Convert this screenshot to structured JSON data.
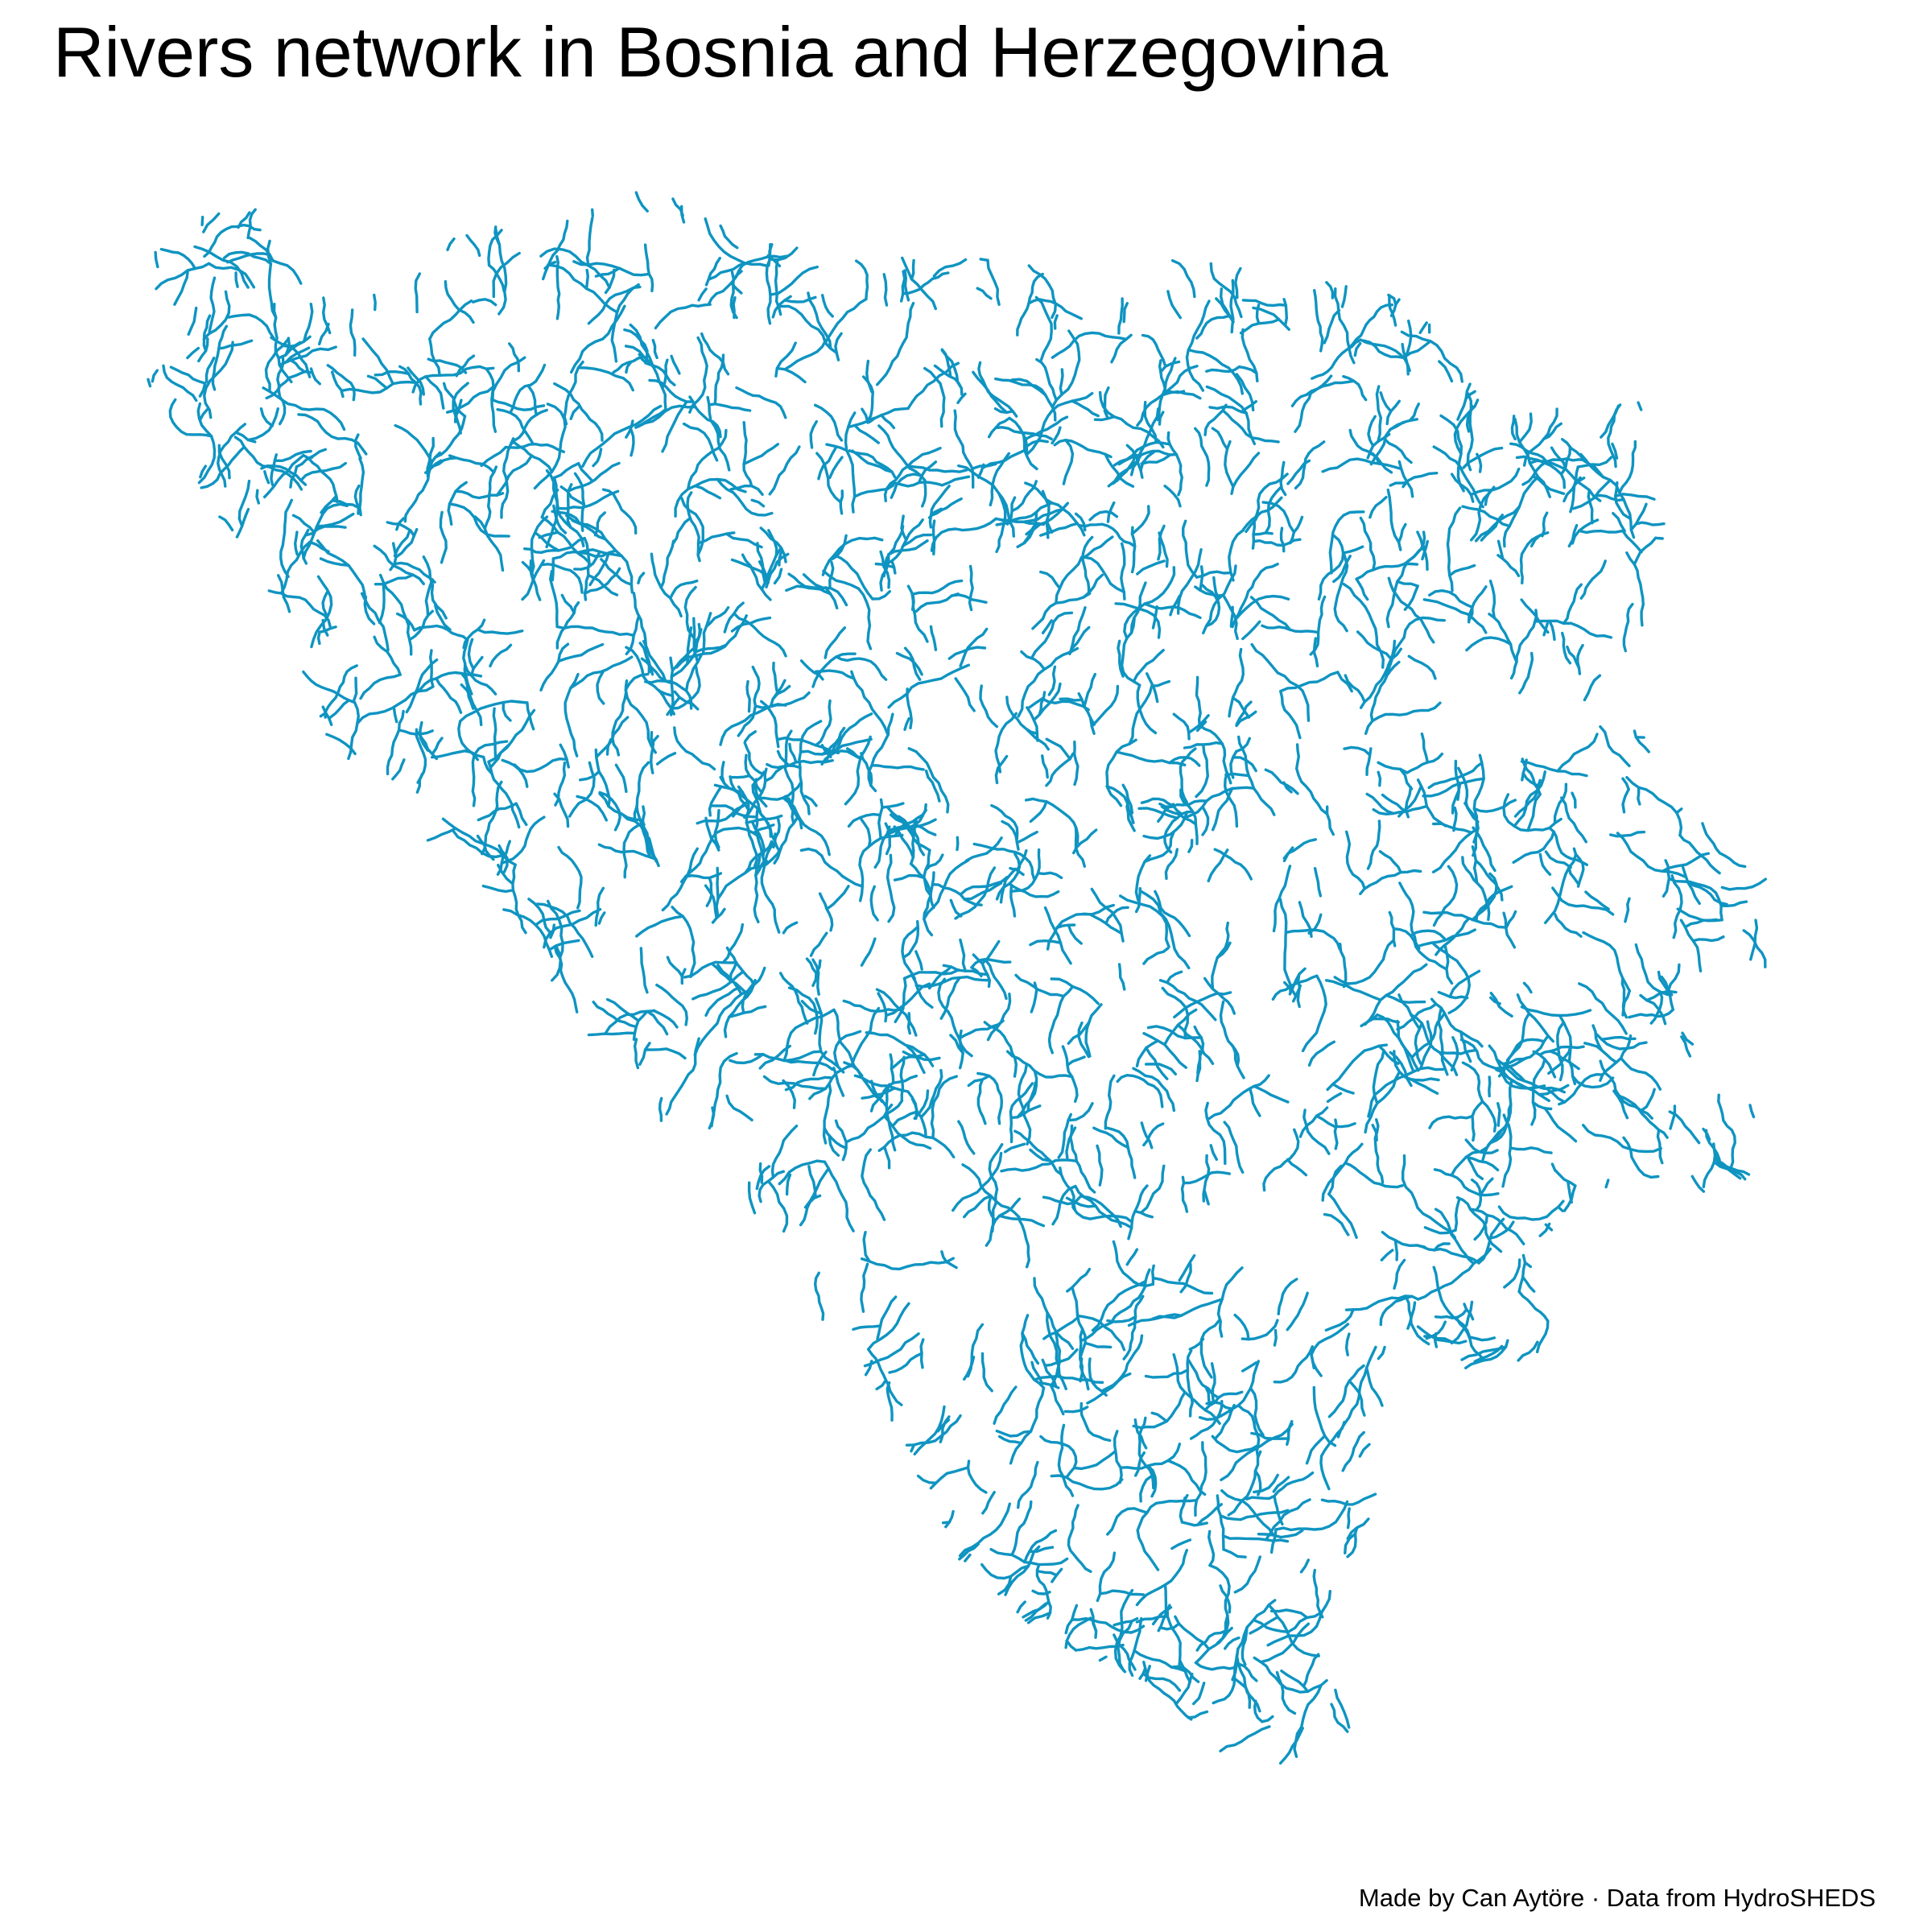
{
  "map": {
    "title": "Rivers network in Bosnia and Herzegovina",
    "caption": "Made by Can Aytöre · Data from HydroSHEDS",
    "river_color": "#0f94c1",
    "background_color": "#ffffff"
  }
}
